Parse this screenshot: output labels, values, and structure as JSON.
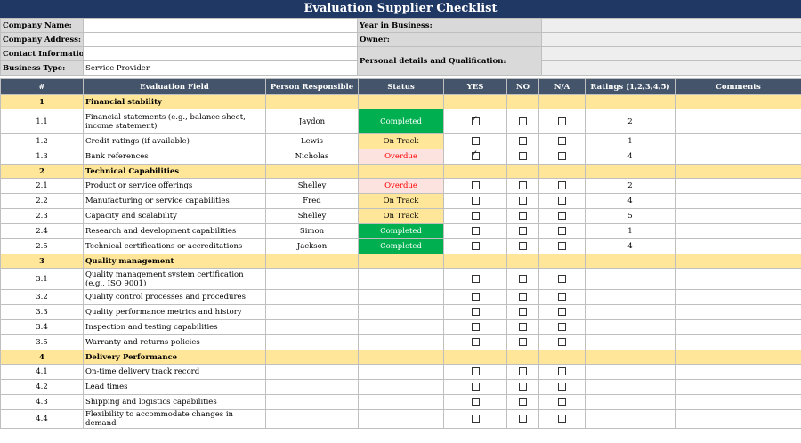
{
  "title": "Evaluation Supplier Checklist",
  "info": {
    "company_name_label": "Company Name:",
    "company_address_label": "Company Address:",
    "contact_label": "Contact Information:",
    "business_type_label": "Business Type:",
    "business_type_value": "Service Provider",
    "year_label": "Year in Business:",
    "owner_label": "Owner:",
    "personal_label": "Personal details and Qualification:"
  },
  "headers": [
    "#",
    "Evaluation Field",
    "Person Responsible",
    "Status",
    "YES",
    "NO",
    "N/A",
    "Ratings (1,2,3,4,5)",
    "Comments"
  ],
  "sections": [
    {
      "num": "1",
      "name": "Financial stability",
      "rows": [
        {
          "num": "1.1",
          "field": "Financial statements (e.g., balance sheet, income statement)",
          "person": "Jaydon",
          "status": "Completed",
          "yes": true,
          "no": false,
          "na": false,
          "rating": "2"
        },
        {
          "num": "1.2",
          "field": "Credit ratings (if available)",
          "person": "Lewis",
          "status": "On Track",
          "yes": false,
          "no": false,
          "na": false,
          "rating": "1"
        },
        {
          "num": "1.3",
          "field": "Bank references",
          "person": "Nicholas",
          "status": "Overdue",
          "yes": true,
          "no": false,
          "na": false,
          "rating": "4"
        }
      ]
    },
    {
      "num": "2",
      "name": "Technical Capabilities",
      "rows": [
        {
          "num": "2.1",
          "field": "Product or service offerings",
          "person": "Shelley",
          "status": "Overdue",
          "yes": false,
          "no": false,
          "na": false,
          "rating": "2"
        },
        {
          "num": "2.2",
          "field": "Manufacturing or service capabilities",
          "person": "Fred",
          "status": "On Track",
          "yes": false,
          "no": false,
          "na": false,
          "rating": "4"
        },
        {
          "num": "2.3",
          "field": "Capacity and scalability",
          "person": "Shelley",
          "status": "On Track",
          "yes": false,
          "no": false,
          "na": false,
          "rating": "5"
        },
        {
          "num": "2.4",
          "field": "Research and development capabilities",
          "person": "Simon",
          "status": "Completed",
          "yes": false,
          "no": false,
          "na": false,
          "rating": "1"
        },
        {
          "num": "2.5",
          "field": "Technical certifications or accreditations",
          "person": "Jackson",
          "status": "Completed",
          "yes": false,
          "no": false,
          "na": false,
          "rating": "4"
        }
      ]
    },
    {
      "num": "3",
      "name": "Quality management",
      "rows": [
        {
          "num": "3.1",
          "field": "Quality management system certification (e.g., ISO 9001)",
          "person": "",
          "status": "",
          "yes": false,
          "no": false,
          "na": false,
          "rating": ""
        },
        {
          "num": "3.2",
          "field": "Quality control processes and procedures",
          "person": "",
          "status": "",
          "yes": false,
          "no": false,
          "na": false,
          "rating": ""
        },
        {
          "num": "3.3",
          "field": "Quality performance metrics and history",
          "person": "",
          "status": "",
          "yes": false,
          "no": false,
          "na": false,
          "rating": ""
        },
        {
          "num": "3.4",
          "field": "Inspection and testing capabilities",
          "person": "",
          "status": "",
          "yes": false,
          "no": false,
          "na": false,
          "rating": ""
        },
        {
          "num": "3.5",
          "field": "Warranty and returns policies",
          "person": "",
          "status": "",
          "yes": false,
          "no": false,
          "na": false,
          "rating": ""
        }
      ]
    },
    {
      "num": "4",
      "name": "Delivery Performance",
      "rows": [
        {
          "num": "4.1",
          "field": "On-time delivery track record",
          "person": "",
          "status": "",
          "yes": false,
          "no": false,
          "na": false,
          "rating": ""
        },
        {
          "num": "4.2",
          "field": "Lead times",
          "person": "",
          "status": "",
          "yes": false,
          "no": false,
          "na": false,
          "rating": ""
        },
        {
          "num": "4.3",
          "field": "Shipping and logistics capabilities",
          "person": "",
          "status": "",
          "yes": false,
          "no": false,
          "na": false,
          "rating": ""
        },
        {
          "num": "4.4",
          "field": "Flexibility to accommodate changes in demand",
          "person": "",
          "status": "",
          "yes": false,
          "no": false,
          "na": false,
          "rating": ""
        }
      ]
    }
  ]
}
